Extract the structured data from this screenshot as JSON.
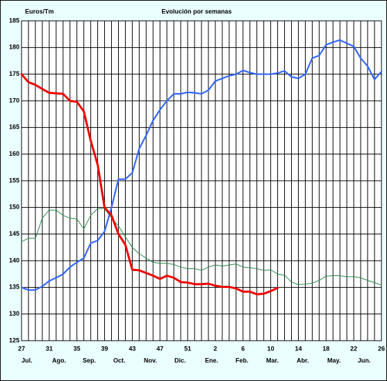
{
  "chart_data": {
    "type": "line",
    "title": "Evolución por semanas",
    "y_label": "Euros/Tm",
    "categories": [
      "27",
      null,
      null,
      null,
      "31",
      null,
      null,
      null,
      "35",
      null,
      null,
      null,
      "39",
      null,
      null,
      null,
      "43",
      null,
      null,
      null,
      "47",
      null,
      null,
      null,
      "51",
      null,
      null,
      null,
      "2",
      null,
      null,
      null,
      "6",
      null,
      null,
      null,
      "10",
      null,
      null,
      null,
      "14",
      null,
      null,
      null,
      "18",
      null,
      null,
      null,
      "22",
      null,
      null,
      null,
      "26"
    ],
    "month_labels": [
      "Jul.",
      "Ago.",
      "Sep.",
      "Oct.",
      "Nov.",
      "Dic.",
      "Ene.",
      "Feb.",
      "Mar.",
      "Abr.",
      "May.",
      "Jun."
    ],
    "series": [
      {
        "color": "#3366ff",
        "width": 2.2,
        "values": [
          135.0,
          134.5,
          134.5,
          135.2,
          136.2,
          136.8,
          137.5,
          138.8,
          139.7,
          140.5,
          143.3,
          143.8,
          145.5,
          150,
          155.3,
          155.3,
          156.5,
          161,
          163.5,
          166.3,
          168.3,
          170,
          171.3,
          171.3,
          171.6,
          171.5,
          171.3,
          172,
          173.7,
          174.2,
          174.7,
          175,
          175.7,
          175.3,
          175,
          175,
          175,
          175.2,
          175.6,
          174.5,
          174.2,
          175,
          178,
          178.5,
          180.5,
          181,
          181.4,
          180.8,
          180.2,
          178,
          176.5,
          174,
          175.5
        ]
      },
      {
        "color": "#ee0000",
        "width": 3,
        "values": [
          175,
          173.5,
          173,
          172.2,
          171.5,
          171.4,
          171.3,
          170,
          169.8,
          168,
          162.5,
          158,
          150,
          148.5,
          145,
          143,
          138.3,
          138.2,
          137.7,
          137.2,
          136.6,
          137.2,
          136.8,
          136.0,
          135.9,
          135.6,
          135.6,
          135.7,
          135.3,
          135.1,
          135.1,
          134.8,
          134.2,
          134.2,
          133.7,
          133.8,
          134.3,
          134.9,
          null,
          null,
          null,
          null,
          null,
          null,
          null,
          null,
          null,
          null,
          null,
          null,
          null,
          null,
          null
        ]
      },
      {
        "color": "#228844",
        "width": 1,
        "values": [
          143.6,
          144.2,
          144.2,
          148,
          149.5,
          149.5,
          148.5,
          148,
          147.8,
          146,
          148.5,
          149.8,
          149.8,
          148,
          146.5,
          144.5,
          142.5,
          141.3,
          140.5,
          139.7,
          139.5,
          139.5,
          139.3,
          138.8,
          138.5,
          138.5,
          138.2,
          138.8,
          139.2,
          139,
          139.2,
          139.4,
          138.8,
          138.7,
          138.5,
          138.2,
          138.3,
          137.5,
          137.3,
          136,
          135.5,
          135.6,
          135.8,
          136.3,
          137.1,
          137.2,
          137.2,
          137,
          137,
          136.8,
          136.3,
          135.9,
          135.4
        ]
      }
    ],
    "ylim": [
      125,
      185
    ],
    "yticks": [
      125,
      130,
      135,
      140,
      145,
      150,
      155,
      160,
      165,
      170,
      175,
      180,
      185
    ],
    "grid": true
  }
}
